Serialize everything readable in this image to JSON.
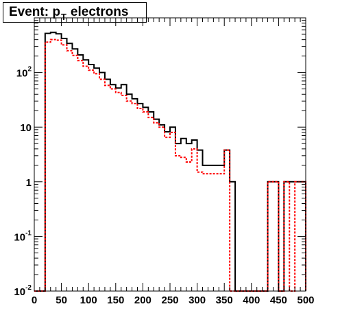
{
  "title": {
    "main": "Event: p",
    "subscript": "T",
    "rest": "electrons"
  },
  "chart_data": {
    "type": "line",
    "title": "Event: p_T electrons",
    "xlabel": "",
    "ylabel": "",
    "xlim": [
      0,
      500
    ],
    "ylim": [
      0.01,
      1000
    ],
    "yscale": "log",
    "grid": false,
    "legend": "none",
    "x_ticks": [
      "0",
      "50",
      "100",
      "150",
      "200",
      "250",
      "300",
      "350",
      "400",
      "450",
      "500"
    ],
    "y_ticks": [
      {
        "base": "10",
        "exp": "-2",
        "value": 0.01
      },
      {
        "base": "10",
        "exp": "-1",
        "value": 0.1
      },
      {
        "base": "1",
        "exp": "",
        "value": 1
      },
      {
        "base": "10",
        "exp": "",
        "value": 10
      },
      {
        "base": "10",
        "exp": "2",
        "value": 100
      }
    ],
    "bin_edges": [
      0,
      10,
      20,
      30,
      40,
      50,
      60,
      70,
      80,
      90,
      100,
      110,
      120,
      130,
      140,
      150,
      160,
      170,
      180,
      190,
      200,
      210,
      220,
      230,
      240,
      250,
      260,
      270,
      280,
      290,
      300,
      310,
      320,
      330,
      340,
      350,
      360,
      370,
      380,
      390,
      400,
      410,
      420,
      430,
      440,
      450,
      460,
      470,
      480,
      490,
      500
    ],
    "series": [
      {
        "color": "#000000",
        "dashed": false,
        "values": [
          0.01,
          0.01,
          520,
          540,
          510,
          420,
          340,
          270,
          210,
          170,
          140,
          120,
          100,
          75,
          60,
          52,
          60,
          40,
          33,
          27,
          23,
          19,
          14,
          11,
          8.2,
          10,
          5,
          6.2,
          5,
          5.8,
          3.8,
          2,
          2,
          2,
          2,
          3.8,
          1,
          0.01,
          0.01,
          0.01,
          0.01,
          0.01,
          0.01,
          1,
          1,
          0.01,
          1,
          1,
          1,
          1
        ]
      },
      {
        "color": "#ff0000",
        "dashed": true,
        "values": [
          0.01,
          0.01,
          360,
          400,
          390,
          320,
          250,
          205,
          165,
          130,
          110,
          95,
          75,
          58,
          50,
          43,
          38,
          30,
          27,
          22,
          19,
          15,
          12,
          10,
          6.5,
          8,
          3,
          2.8,
          2.3,
          4,
          1.5,
          1.4,
          1.4,
          1.4,
          1.4,
          3.8,
          0.01,
          0.01,
          0.01,
          0.01,
          0.01,
          0.01,
          0.01,
          1,
          1,
          0.01,
          1,
          0.01,
          1,
          1
        ]
      }
    ]
  }
}
